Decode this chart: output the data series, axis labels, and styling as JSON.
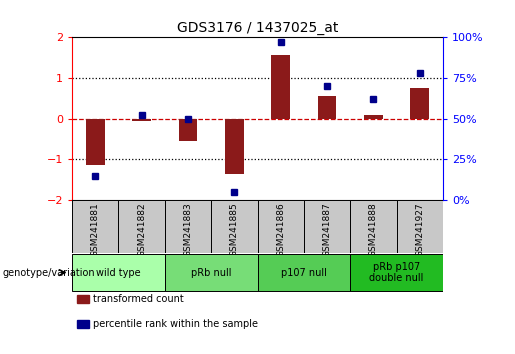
{
  "title": "GDS3176 / 1437025_at",
  "samples": [
    "GSM241881",
    "GSM241882",
    "GSM241883",
    "GSM241885",
    "GSM241886",
    "GSM241887",
    "GSM241888",
    "GSM241927"
  ],
  "bar_values": [
    -1.15,
    -0.05,
    -0.55,
    -1.35,
    1.55,
    0.55,
    0.1,
    0.75
  ],
  "dot_values_pct": [
    15,
    52,
    50,
    5,
    97,
    70,
    62,
    78
  ],
  "ylim_left": [
    -2,
    2
  ],
  "ylim_right": [
    0,
    100
  ],
  "bar_color": "#8B1A1A",
  "dot_color": "#00008B",
  "hline_color": "#CC0000",
  "dotted_color": "#000000",
  "groups": [
    {
      "label": "wild type",
      "start": 0,
      "end": 1,
      "color": "#AAFFAA"
    },
    {
      "label": "pRb null",
      "start": 2,
      "end": 3,
      "color": "#77DD77"
    },
    {
      "label": "p107 null",
      "start": 4,
      "end": 5,
      "color": "#55CC55"
    },
    {
      "label": "pRb p107\ndouble null",
      "start": 6,
      "end": 7,
      "color": "#22BB22"
    }
  ],
  "legend_items": [
    {
      "label": "transformed count",
      "color": "#8B1A1A"
    },
    {
      "label": "percentile rank within the sample",
      "color": "#00008B"
    }
  ],
  "left_yticks": [
    -2,
    -1,
    0,
    1,
    2
  ],
  "right_yticks": [
    0,
    25,
    50,
    75,
    100
  ],
  "right_yticklabels": [
    "0%",
    "25%",
    "50%",
    "75%",
    "100%"
  ],
  "sample_box_color": "#C8C8C8",
  "bar_width": 0.4
}
